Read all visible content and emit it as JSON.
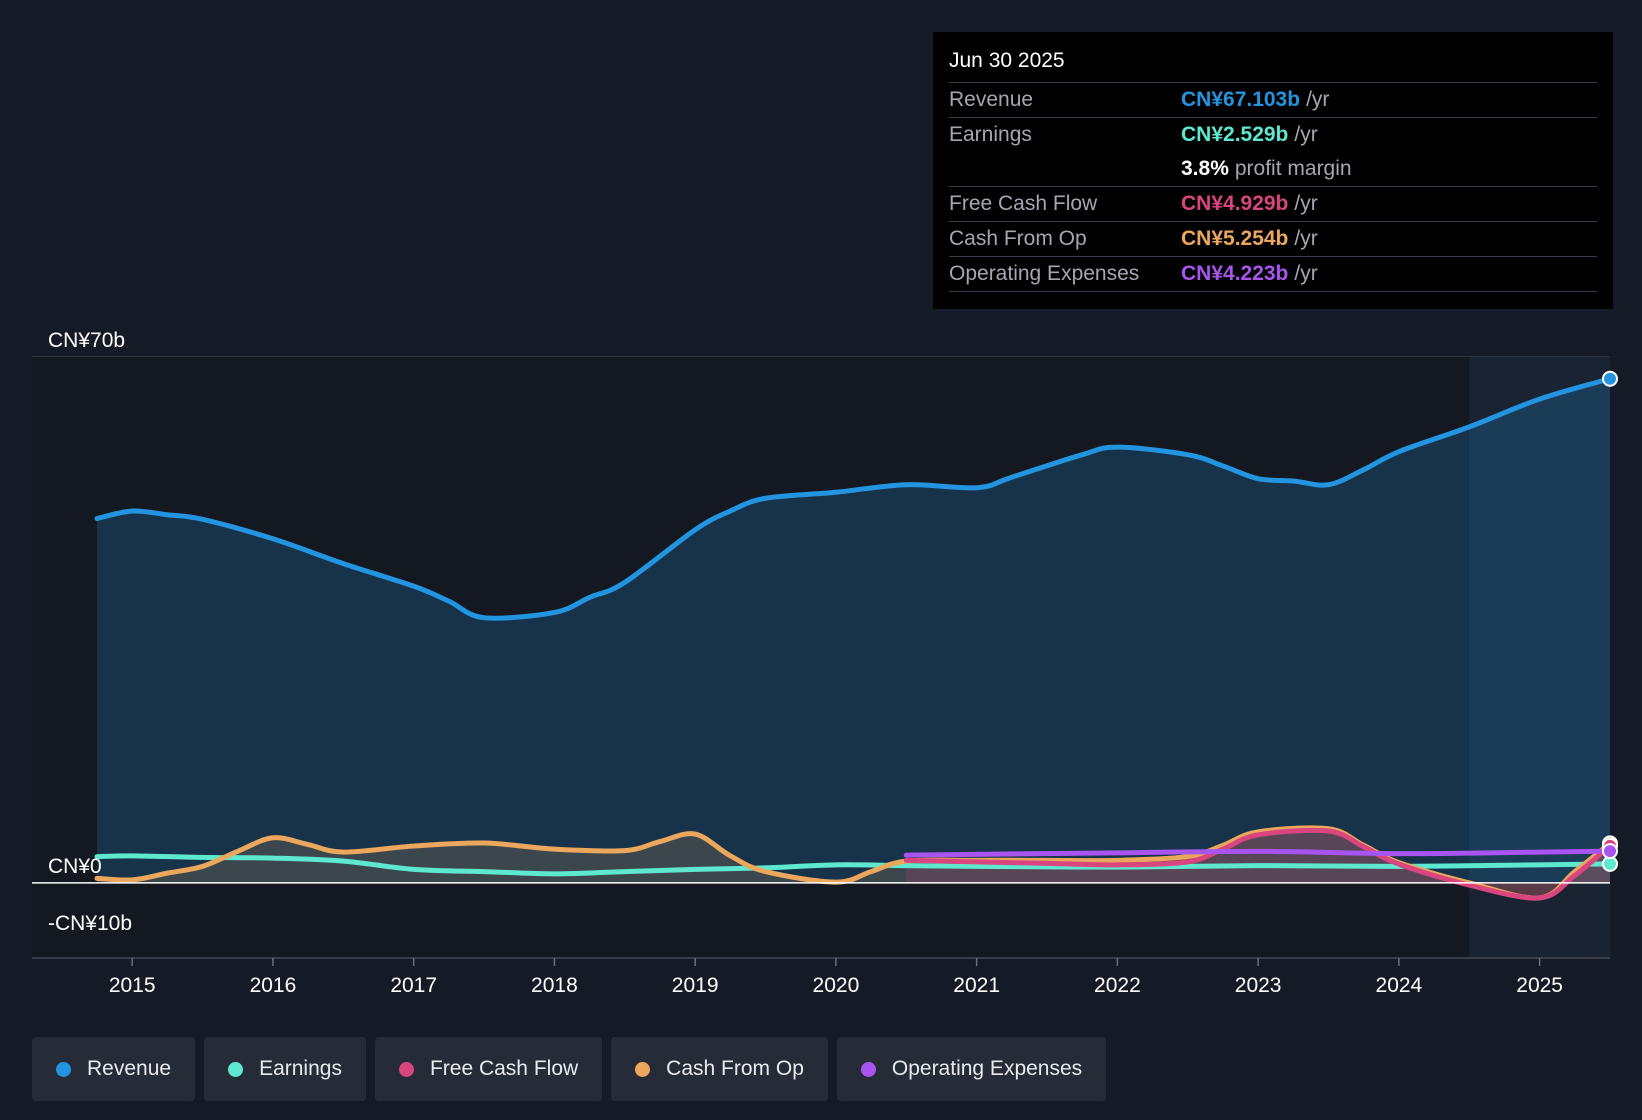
{
  "tooltip": {
    "date": "Jun 30 2025",
    "rows": [
      {
        "label": "Revenue",
        "value": "CN¥67.103b",
        "unit": "/yr",
        "color": "#2394e0"
      },
      {
        "label": "Earnings",
        "value": "CN¥2.529b",
        "unit": "/yr",
        "color": "#5ee8cf"
      },
      {
        "label": "",
        "value": "3.8%",
        "unit": "profit margin",
        "color": "#ffffff"
      },
      {
        "label": "Free Cash Flow",
        "value": "CN¥4.929b",
        "unit": "/yr",
        "color": "#d9457f"
      },
      {
        "label": "Cash From Op",
        "value": "CN¥5.254b",
        "unit": "/yr",
        "color": "#eba75c"
      },
      {
        "label": "Operating Expenses",
        "value": "CN¥4.223b",
        "unit": "/yr",
        "color": "#a855f0"
      }
    ]
  },
  "legend": [
    {
      "label": "Revenue",
      "color": "#2394e0"
    },
    {
      "label": "Earnings",
      "color": "#5ee8cf"
    },
    {
      "label": "Free Cash Flow",
      "color": "#d9457f"
    },
    {
      "label": "Cash From Op",
      "color": "#eba75c"
    },
    {
      "label": "Operating Expenses",
      "color": "#a855f0"
    }
  ],
  "chart_data": {
    "type": "line",
    "title": "",
    "xlabel": "",
    "ylabel": "",
    "ylim": [
      -10,
      70
    ],
    "xlim": [
      2014.75,
      2025.5
    ],
    "y_tick_labels": [
      {
        "value": 70,
        "label": "CN¥70b"
      },
      {
        "value": 0,
        "label": "CN¥0"
      },
      {
        "value": -10,
        "label": "-CN¥10b"
      }
    ],
    "gridlines": [
      70,
      60,
      40,
      20
    ],
    "x_ticks": [
      2015,
      2016,
      2017,
      2018,
      2019,
      2020,
      2021,
      2022,
      2023,
      2024,
      2025
    ],
    "x_tick_labels": [
      "2015",
      "2016",
      "2017",
      "2018",
      "2019",
      "2020",
      "2021",
      "2022",
      "2023",
      "2024",
      "2025"
    ],
    "forecast_shade_start": 2024.5,
    "series": [
      {
        "name": "Revenue",
        "color": "#2394e0",
        "fill": true,
        "marker_end": true,
        "x": [
          2014.75,
          2015.0,
          2015.25,
          2015.5,
          2016.0,
          2016.5,
          2017.0,
          2017.25,
          2017.5,
          2018.0,
          2018.25,
          2018.5,
          2019.0,
          2019.25,
          2019.5,
          2020.0,
          2020.5,
          2021.0,
          2021.25,
          2021.75,
          2022.0,
          2022.5,
          2022.75,
          2023.0,
          2023.25,
          2023.5,
          2023.75,
          2024.0,
          2024.5,
          2025.0,
          2025.5
        ],
        "y": [
          48.5,
          49.5,
          49.0,
          48.4,
          45.8,
          42.5,
          39.5,
          37.5,
          35.3,
          36.0,
          38.0,
          40.0,
          47.0,
          49.5,
          51.2,
          52.0,
          53.0,
          52.6,
          54.0,
          57.0,
          58.0,
          57.0,
          55.5,
          53.8,
          53.5,
          53.0,
          55.0,
          57.4,
          60.7,
          64.4,
          67.103
        ]
      },
      {
        "name": "Earnings",
        "color": "#5ee8cf",
        "fill": false,
        "marker_end": true,
        "x": [
          2014.75,
          2015.0,
          2015.5,
          2016.0,
          2016.5,
          2017.0,
          2017.5,
          2018.0,
          2018.5,
          2019.0,
          2019.5,
          2020.0,
          2020.5,
          2021.0,
          2022.0,
          2023.0,
          2024.0,
          2025.0,
          2025.5
        ],
        "y": [
          3.5,
          3.6,
          3.4,
          3.3,
          2.9,
          1.8,
          1.5,
          1.2,
          1.5,
          1.8,
          2.0,
          2.4,
          2.3,
          2.2,
          2.1,
          2.3,
          2.2,
          2.4,
          2.529
        ]
      },
      {
        "name": "Cash From Op",
        "color": "#eba75c",
        "fill": true,
        "marker_end": true,
        "x": [
          2014.75,
          2015.0,
          2015.25,
          2015.5,
          2015.75,
          2016.0,
          2016.25,
          2016.5,
          2017.0,
          2017.5,
          2018.0,
          2018.5,
          2018.75,
          2019.0,
          2019.25,
          2019.5,
          2020.0,
          2020.25,
          2020.5,
          2021.0,
          2021.5,
          2022.0,
          2022.5,
          2022.75,
          2023.0,
          2023.5,
          2023.75,
          2024.0,
          2024.5,
          2025.0,
          2025.25,
          2025.5
        ],
        "y": [
          0.6,
          0.4,
          1.3,
          2.2,
          4.2,
          6.0,
          5.1,
          4.1,
          4.9,
          5.3,
          4.5,
          4.3,
          5.5,
          6.5,
          3.6,
          1.5,
          0.1,
          1.5,
          2.9,
          3.0,
          3.0,
          3.0,
          3.5,
          5.0,
          6.8,
          7.2,
          5.0,
          2.7,
          0.0,
          -2.0,
          1.5,
          5.254
        ]
      },
      {
        "name": "Free Cash Flow",
        "color": "#d9457f",
        "fill": true,
        "marker_end": true,
        "x": [
          2020.5,
          2021.0,
          2021.5,
          2022.0,
          2022.5,
          2022.75,
          2023.0,
          2023.5,
          2023.75,
          2024.0,
          2024.5,
          2025.0,
          2025.25,
          2025.5
        ],
        "y": [
          3.0,
          2.8,
          2.6,
          2.4,
          2.8,
          4.5,
          6.4,
          6.9,
          4.8,
          2.5,
          -0.3,
          -2.0,
          1.0,
          4.929
        ]
      },
      {
        "name": "Operating Expenses",
        "color": "#a855f0",
        "fill": false,
        "marker_end": true,
        "x": [
          2020.5,
          2021.0,
          2022.0,
          2023.0,
          2024.0,
          2025.0,
          2025.5
        ],
        "y": [
          3.7,
          3.8,
          4.0,
          4.2,
          3.9,
          4.1,
          4.223
        ]
      }
    ]
  }
}
